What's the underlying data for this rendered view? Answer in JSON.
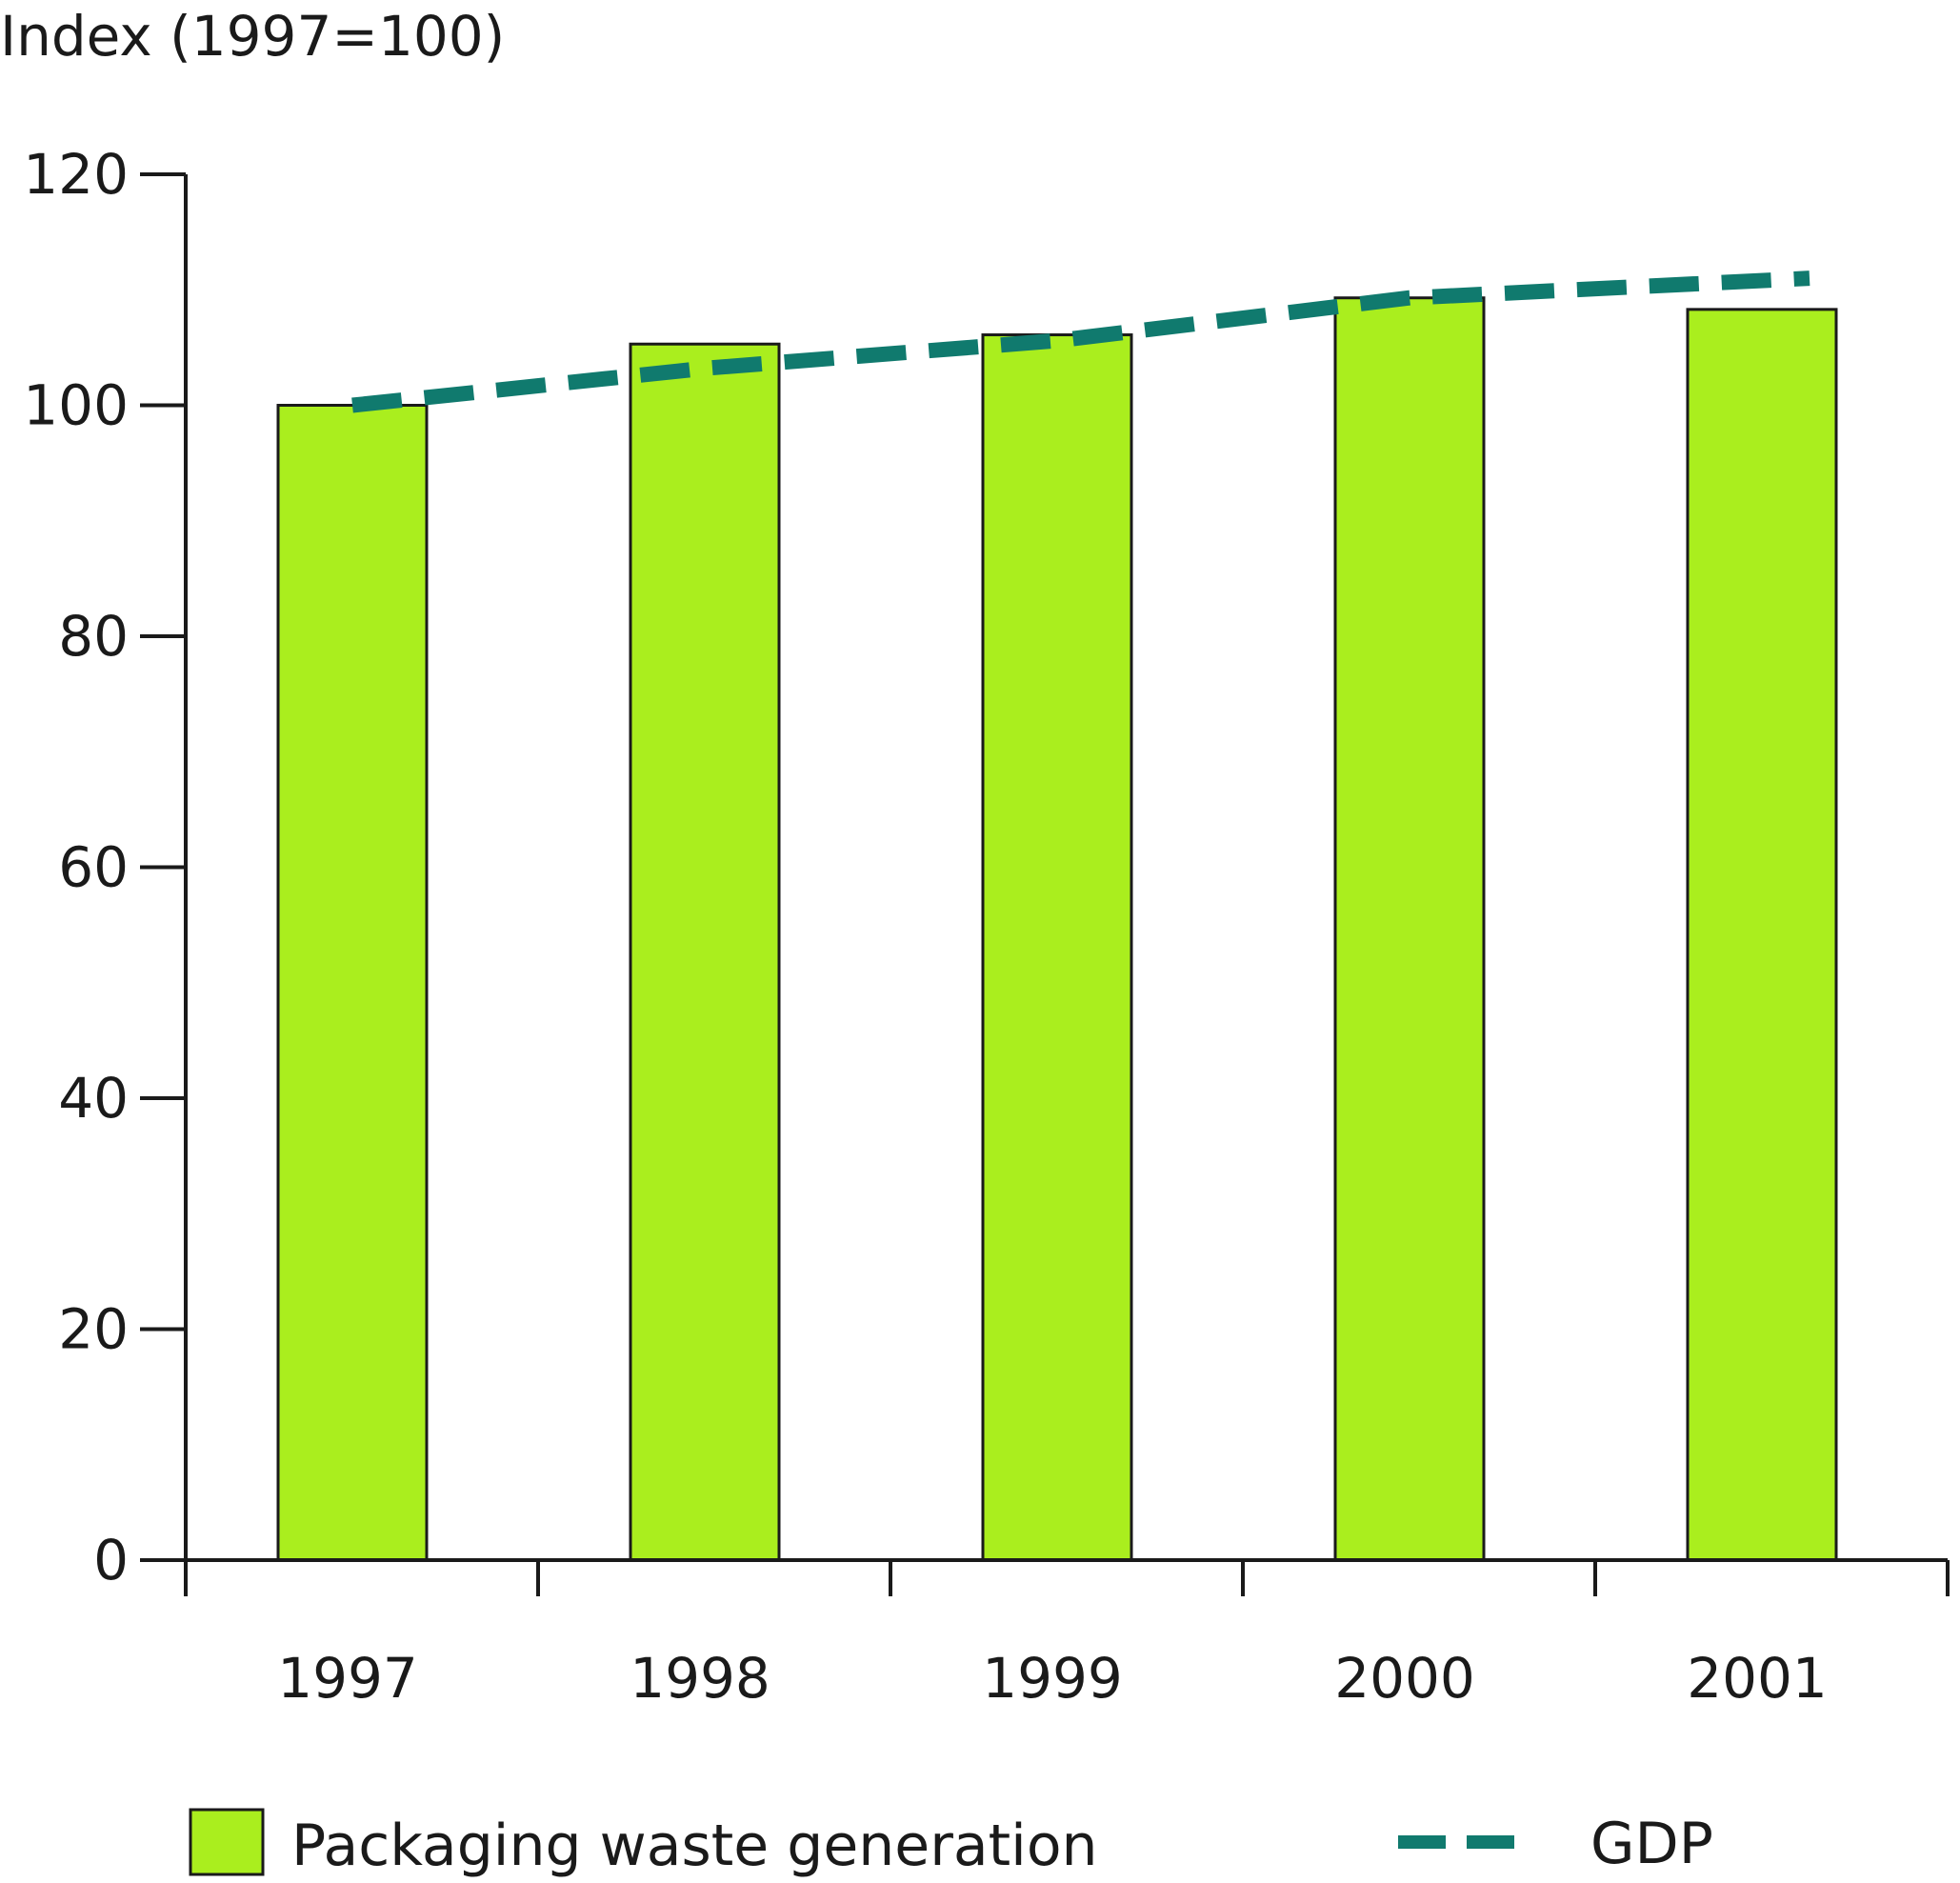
{
  "chart_data": {
    "type": "bar",
    "title": "",
    "ylabel": "Index (1997=100)",
    "xlabel": "",
    "categories": [
      "1997",
      "1998",
      "1999",
      "2000",
      "2001"
    ],
    "ylim": [
      0,
      120
    ],
    "yticks": [
      0,
      20,
      40,
      60,
      80,
      100,
      120
    ],
    "grid": false,
    "legend_position": "bottom",
    "series": [
      {
        "name": "Packaging waste generation",
        "type": "bar",
        "color": "#aaee1e",
        "values": [
          100,
          105.3,
          106.1,
          109.3,
          108.3
        ]
      },
      {
        "name": "GDP",
        "type": "line",
        "style": "dashed",
        "color": "#107a6e",
        "values": [
          100,
          103.2,
          105.6,
          109.3,
          111.0
        ]
      }
    ]
  }
}
